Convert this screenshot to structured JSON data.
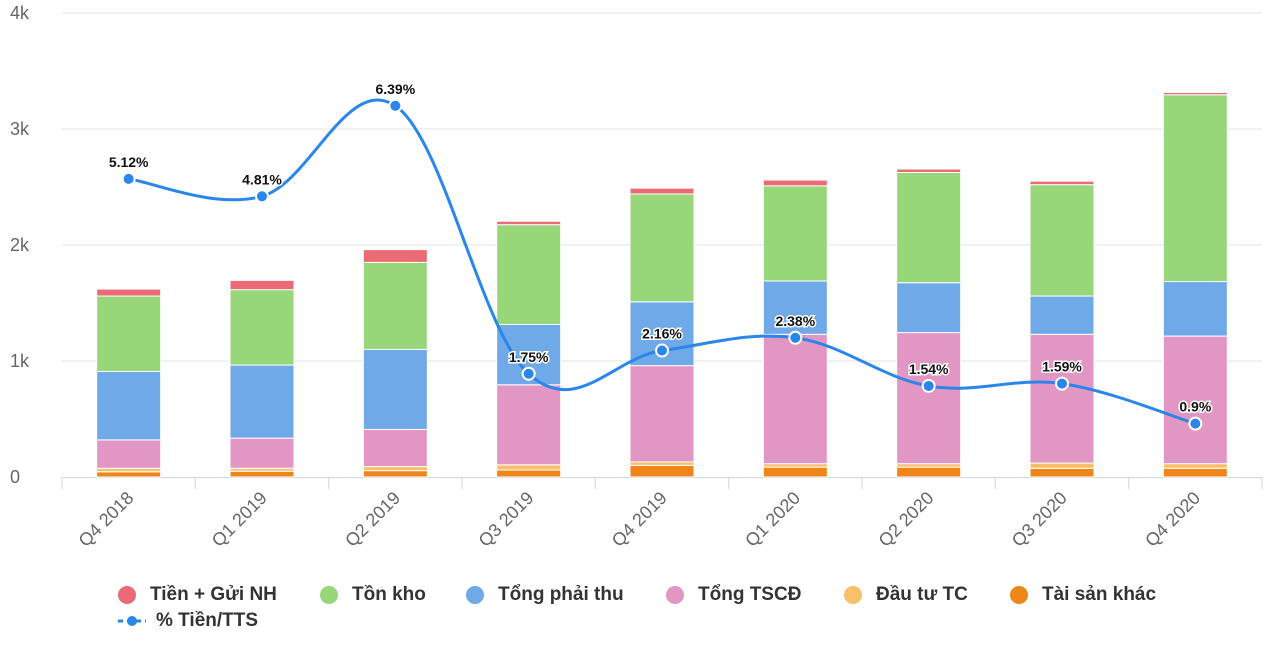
{
  "chart_data": {
    "type": "bar",
    "stacked": true,
    "categories": [
      "Q4 2018",
      "Q1 2019",
      "Q2 2019",
      "Q3 2019",
      "Q4 2019",
      "Q1 2020",
      "Q2 2020",
      "Q3 2020",
      "Q4 2020"
    ],
    "ylim": [
      0,
      4000
    ],
    "yticks": [
      0,
      1000,
      2000,
      3000,
      4000
    ],
    "ytick_labels": [
      "0",
      "1k",
      "2k",
      "3k",
      "4k"
    ],
    "grid": true,
    "legend_position": "bottom",
    "series": [
      {
        "name": "Tài sản khác",
        "color": "#f0861a",
        "values": [
          45,
          50,
          55,
          60,
          100,
          85,
          85,
          75,
          75
        ]
      },
      {
        "name": "Đầu tư TC",
        "color": "#f9bf6a",
        "values": [
          30,
          25,
          35,
          45,
          30,
          30,
          30,
          45,
          40
        ]
      },
      {
        "name": "Tổng TSCĐ",
        "color": "#e296c4",
        "values": [
          245,
          260,
          320,
          690,
          830,
          1115,
          1130,
          1110,
          1100
        ]
      },
      {
        "name": "Tổng phải thu",
        "color": "#6fa9e8",
        "values": [
          590,
          630,
          690,
          520,
          550,
          460,
          430,
          330,
          470
        ]
      },
      {
        "name": "Tồn kho",
        "color": "#98d67a",
        "values": [
          650,
          650,
          750,
          860,
          930,
          820,
          950,
          960,
          1610
        ]
      },
      {
        "name": "Tiền + Gửi NH",
        "color": "#ea6a75",
        "values": [
          60,
          80,
          110,
          30,
          50,
          50,
          30,
          30,
          20
        ]
      }
    ],
    "line_series": {
      "name": "% Tiền/TTS",
      "color": "#2a86ea",
      "values": [
        5.12,
        4.81,
        6.39,
        1.75,
        2.16,
        2.38,
        1.54,
        1.59,
        0.9
      ],
      "labels": [
        "5.12%",
        "4.81%",
        "6.39%",
        "1.75%",
        "2.16%",
        "2.38%",
        "1.54%",
        "1.59%",
        "0.9%"
      ],
      "plotted_at": [
        2570,
        2420,
        3200,
        890,
        1090,
        1200,
        785,
        805,
        460
      ]
    },
    "legend_order": [
      "Tiền + Gửi NH",
      "Tồn kho",
      "Tổng phải thu",
      "Tổng TSCĐ",
      "Đầu tư TC",
      "Tài sản khác",
      "% Tiền/TTS"
    ]
  }
}
